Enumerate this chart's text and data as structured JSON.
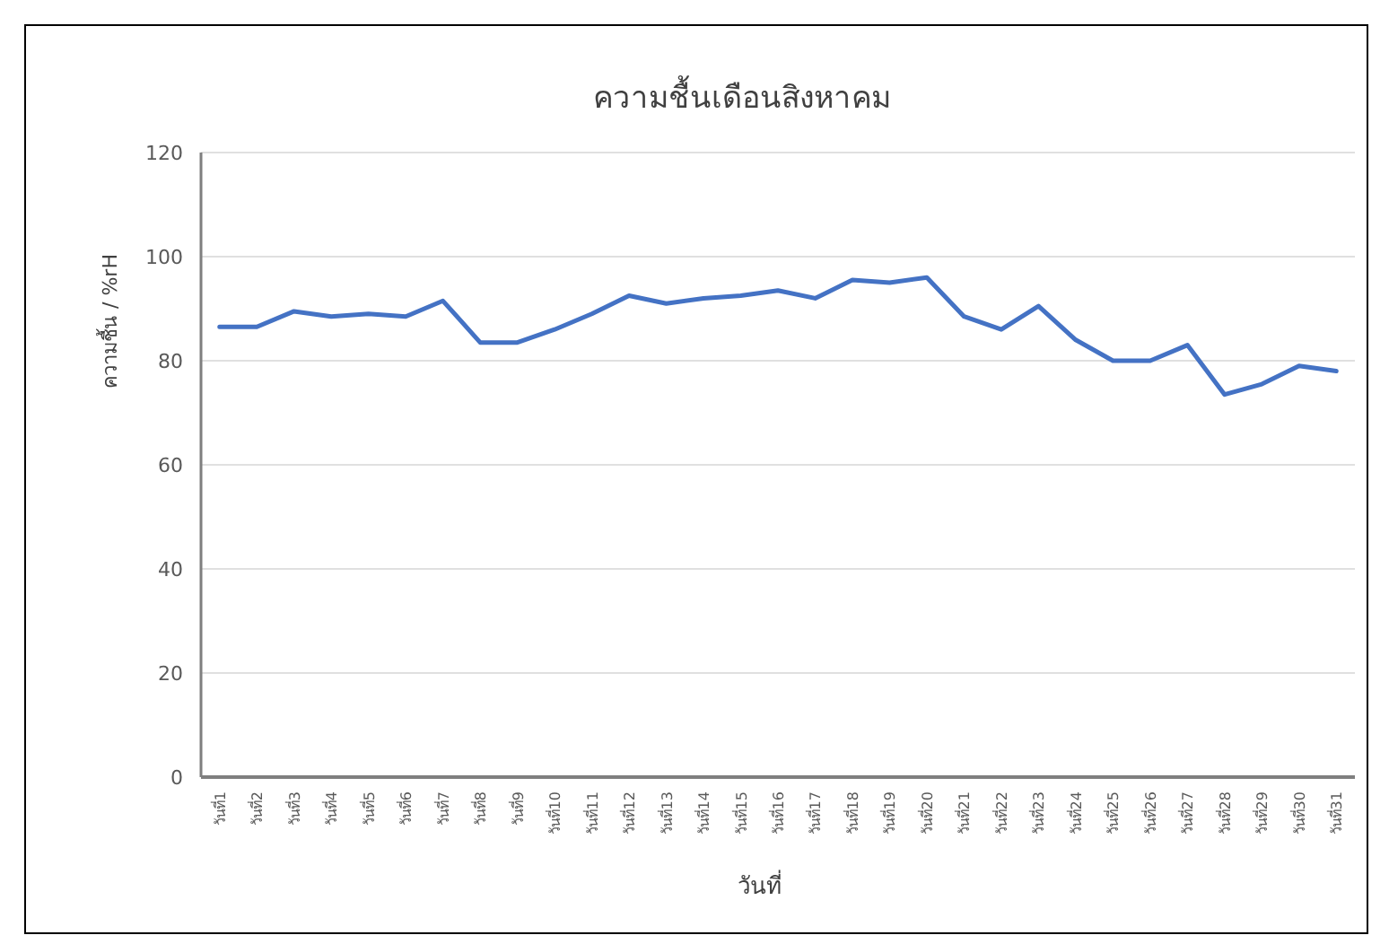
{
  "chart_data": {
    "type": "line",
    "title": "ความชื้นเดือนสิงหาคม",
    "xlabel": "วันที่",
    "ylabel": "ความชื้น / %rH",
    "categories": [
      "วันที่1",
      "วันที่2",
      "วันที่3",
      "วันที่4",
      "วันที่5",
      "วันที่6",
      "วันที่7",
      "วันที่8",
      "วันที่9",
      "วันที่10",
      "วันที่11",
      "วันที่12",
      "วันที่13",
      "วันที่14",
      "วันที่15",
      "วันที่16",
      "วันที่17",
      "วันที่18",
      "วันที่19",
      "วันที่20",
      "วันที่21",
      "วันที่22",
      "วันที่23",
      "วันที่24",
      "วันที่25",
      "วันที่26",
      "วันที่27",
      "วันที่28",
      "วันที่29",
      "วันที่30",
      "วันที่31"
    ],
    "series": [
      {
        "color": "#4472c4",
        "values": [
          86.5,
          86.5,
          89.5,
          88.5,
          89,
          88.5,
          91.5,
          83.5,
          83.5,
          86,
          89,
          92.5,
          91,
          92,
          92.5,
          93.5,
          92,
          95.5,
          95,
          96,
          88.5,
          86,
          90.5,
          84,
          80,
          80,
          83,
          73.5,
          75.5,
          79,
          78
        ]
      }
    ],
    "ylim": [
      0,
      120
    ],
    "yticks": [
      0,
      20,
      40,
      60,
      80,
      100,
      120
    ],
    "grid": "y"
  }
}
